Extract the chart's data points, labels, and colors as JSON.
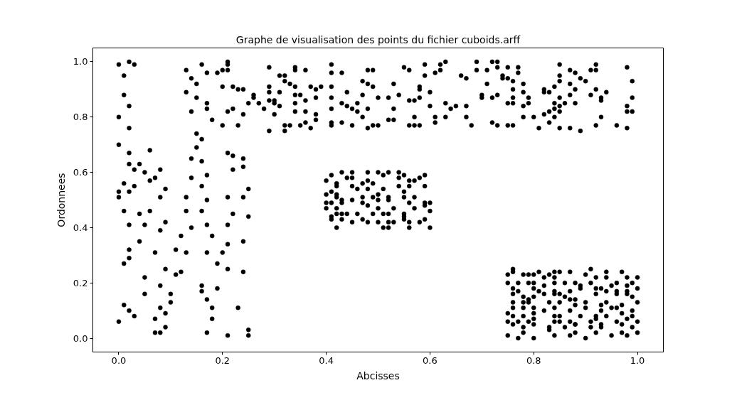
{
  "chart_data": {
    "type": "scatter",
    "title": "Graphe de visualisation des points du fichier cuboids.arff",
    "xlabel": "Abcisses",
    "ylabel": "Ordonnees",
    "marker": "circle",
    "xlim": [
      -0.05,
      1.05
    ],
    "ylim": [
      -0.05,
      1.05
    ],
    "xticks": [
      {
        "value": 0,
        "label": "0.0"
      },
      {
        "value": 0.2,
        "label": "0.2"
      },
      {
        "value": 0.4,
        "label": "0.4"
      },
      {
        "value": 0.6,
        "label": "0.6"
      },
      {
        "value": 0.8,
        "label": "0.8"
      },
      {
        "value": 1,
        "label": "1.0"
      }
    ],
    "yticks": [
      {
        "value": 0,
        "label": "0.0"
      },
      {
        "value": 0.2,
        "label": "0.2"
      },
      {
        "value": 0.4,
        "label": "0.4"
      },
      {
        "value": 0.6,
        "label": "0.6"
      },
      {
        "value": 0.8,
        "label": "0.8"
      },
      {
        "value": 1,
        "label": "1.0"
      }
    ],
    "series": [
      {
        "color": "#000000",
        "x": [
          0.0,
          0.01,
          0.02,
          0.03,
          0.01,
          0.02,
          0.0,
          0.02,
          0.0,
          0.02,
          0.02,
          0.03,
          0.01,
          0.0,
          0.02,
          0.0,
          0.03,
          0.01,
          0.02,
          0.02,
          0.01,
          0.02,
          0.01,
          0.0,
          0.02,
          0.03,
          0.05,
          0.05,
          0.04,
          0.04,
          0.05,
          0.06,
          0.04,
          0.05,
          0.06,
          0.07,
          0.06,
          0.08,
          0.08,
          0.09,
          0.09,
          0.08,
          0.07,
          0.09,
          0.08,
          0.08,
          0.09,
          0.07,
          0.08,
          0.09,
          0.1,
          0.1,
          0.11,
          0.11,
          0.12,
          0.13,
          0.12,
          0.13,
          0.14,
          0.13,
          0.14,
          0.14,
          0.15,
          0.15,
          0.14,
          0.14,
          0.13,
          0.15,
          0.13,
          0.15,
          0.17,
          0.16,
          0.17,
          0.17,
          0.18,
          0.16,
          0.16,
          0.17,
          0.16,
          0.17,
          0.16,
          0.17,
          0.18,
          0.17,
          0.16,
          0.16,
          0.17,
          0.18,
          0.18,
          0.17,
          0.19,
          0.19,
          0.2,
          0.21,
          0.21,
          0.21,
          0.21,
          0.22,
          0.22,
          0.21,
          0.22,
          0.2,
          0.21,
          0.21,
          0.2,
          0.19,
          0.2,
          0.22,
          0.22,
          0.23,
          0.24,
          0.24,
          0.24,
          0.25,
          0.25,
          0.24,
          0.24,
          0.23,
          0.25,
          0.25,
          0.24,
          0.25,
          0.24,
          0.23,
          0.21,
          0.21,
          0.07,
          0.21
        ],
        "values": [
          0.99,
          0.95,
          1.0,
          0.99,
          0.88,
          0.84,
          0.8,
          0.76,
          0.7,
          0.67,
          0.63,
          0.61,
          0.56,
          0.53,
          0.53,
          0.51,
          0.55,
          0.46,
          0.41,
          0.32,
          0.27,
          0.29,
          0.12,
          0.06,
          0.1,
          0.08,
          0.16,
          0.22,
          0.35,
          0.45,
          0.41,
          0.46,
          0.63,
          0.6,
          0.68,
          0.58,
          0.57,
          0.51,
          0.61,
          0.54,
          0.42,
          0.39,
          0.31,
          0.25,
          0.19,
          0.11,
          0.09,
          0.07,
          0.02,
          0.04,
          0.16,
          0.13,
          0.32,
          0.23,
          0.24,
          0.31,
          0.37,
          0.46,
          0.4,
          0.51,
          0.58,
          0.65,
          0.69,
          0.74,
          0.82,
          0.94,
          0.97,
          0.92,
          0.89,
          0.87,
          0.83,
          0.99,
          0.96,
          0.85,
          0.79,
          0.72,
          0.64,
          0.59,
          0.55,
          0.5,
          0.46,
          0.41,
          0.37,
          0.31,
          0.19,
          0.17,
          0.14,
          0.11,
          0.07,
          0.02,
          0.18,
          0.27,
          0.31,
          0.25,
          0.34,
          0.41,
          0.51,
          0.45,
          0.61,
          0.67,
          0.66,
          0.77,
          0.82,
          0.97,
          0.97,
          0.96,
          0.91,
          0.83,
          0.91,
          0.77,
          0.65,
          0.62,
          0.51,
          0.54,
          0.44,
          0.35,
          0.24,
          0.11,
          0.03,
          0.01,
          0.9,
          0.85,
          0.81,
          0.9,
          1.0,
          0.99,
          0.02,
          0.01
        ]
      },
      {
        "color": "#000000",
        "x": [
          0.29,
          0.34,
          0.34,
          0.36,
          0.41,
          0.41,
          0.43,
          0.48,
          0.49,
          0.55,
          0.56,
          0.59,
          0.62,
          0.63,
          0.62,
          0.61,
          0.59,
          0.66,
          0.67,
          0.69,
          0.69,
          0.31,
          0.32,
          0.32,
          0.33,
          0.29,
          0.34,
          0.37,
          0.38,
          0.39,
          0.41,
          0.47,
          0.48,
          0.49,
          0.53,
          0.58,
          0.58,
          0.6,
          0.26,
          0.26,
          0.27,
          0.29,
          0.29,
          0.3,
          0.31,
          0.34,
          0.35,
          0.36,
          0.38,
          0.41,
          0.44,
          0.47,
          0.5,
          0.52,
          0.54,
          0.56,
          0.57,
          0.58,
          0.63,
          0.7,
          0.7,
          0.28,
          0.3,
          0.31,
          0.34,
          0.34,
          0.36,
          0.38,
          0.38,
          0.36,
          0.41,
          0.43,
          0.44,
          0.45,
          0.46,
          0.46,
          0.48,
          0.47,
          0.53,
          0.53,
          0.52,
          0.57,
          0.6,
          0.61,
          0.61,
          0.63,
          0.64,
          0.65,
          0.67,
          0.67,
          0.3,
          0.35,
          0.32,
          0.33,
          0.29,
          0.32,
          0.37,
          0.41,
          0.41,
          0.43,
          0.45,
          0.48,
          0.49,
          0.5,
          0.56,
          0.57,
          0.58,
          0.68
        ],
        "values": [
          0.98,
          0.98,
          0.97,
          0.97,
          0.99,
          0.96,
          0.96,
          0.97,
          0.97,
          0.98,
          0.97,
          0.99,
          0.99,
          1.0,
          0.97,
          0.96,
          0.95,
          0.95,
          0.94,
          0.97,
          1.0,
          0.95,
          0.95,
          0.93,
          0.92,
          0.91,
          0.91,
          0.91,
          0.9,
          0.91,
          0.91,
          0.93,
          0.92,
          0.91,
          0.92,
          0.91,
          0.9,
          0.89,
          0.88,
          0.87,
          0.85,
          0.89,
          0.86,
          0.86,
          0.89,
          0.88,
          0.88,
          0.86,
          0.87,
          0.87,
          0.89,
          0.88,
          0.87,
          0.87,
          0.88,
          0.86,
          0.86,
          0.87,
          0.85,
          0.88,
          0.87,
          0.83,
          0.85,
          0.84,
          0.85,
          0.82,
          0.82,
          0.81,
          0.79,
          0.78,
          0.83,
          0.85,
          0.84,
          0.83,
          0.85,
          0.82,
          0.83,
          0.8,
          0.83,
          0.79,
          0.79,
          0.8,
          0.84,
          0.8,
          0.78,
          0.8,
          0.83,
          0.84,
          0.84,
          0.8,
          0.81,
          0.77,
          0.77,
          0.77,
          0.75,
          0.75,
          0.76,
          0.77,
          0.78,
          0.78,
          0.77,
          0.76,
          0.77,
          0.77,
          0.77,
          0.77,
          0.77,
          0.77
        ]
      },
      {
        "color": "#000000",
        "x": [
          0.72,
          0.73,
          0.73,
          0.75,
          0.77,
          0.77,
          0.71,
          0.74,
          0.74,
          0.75,
          0.76,
          0.78,
          0.71,
          0.76,
          0.78,
          0.72,
          0.73,
          0.75,
          0.76,
          0.76,
          0.78,
          0.79,
          0.79,
          0.78,
          0.72,
          0.73,
          0.75,
          0.76,
          0.85,
          0.85,
          0.85,
          0.84,
          0.87,
          0.88,
          0.87,
          0.88,
          0.89,
          0.9,
          0.82,
          0.82,
          0.83,
          0.85,
          0.87,
          0.86,
          0.88,
          0.84,
          0.85,
          0.84,
          0.85,
          0.83,
          0.82,
          0.8,
          0.84,
          0.83,
          0.81,
          0.85,
          0.87,
          0.89,
          0.91,
          0.92,
          0.92,
          0.91,
          0.92,
          0.94,
          0.93,
          0.93,
          0.93,
          0.92,
          0.98,
          0.99,
          0.99,
          0.98,
          0.98,
          0.99,
          0.96,
          0.98
        ],
        "values": [
          1.0,
          1.0,
          0.98,
          0.98,
          0.98,
          0.96,
          0.97,
          0.95,
          0.94,
          0.94,
          0.93,
          0.92,
          0.92,
          0.9,
          0.89,
          0.87,
          0.88,
          0.85,
          0.85,
          0.87,
          0.84,
          0.85,
          0.87,
          0.8,
          0.78,
          0.77,
          0.77,
          0.77,
          0.99,
          0.95,
          0.93,
          0.91,
          0.97,
          0.96,
          0.92,
          0.9,
          0.94,
          0.93,
          0.9,
          0.89,
          0.89,
          0.87,
          0.88,
          0.85,
          0.85,
          0.85,
          0.84,
          0.83,
          0.82,
          0.82,
          0.81,
          0.8,
          0.8,
          0.78,
          0.76,
          0.76,
          0.76,
          0.75,
          0.97,
          0.99,
          0.97,
          0.88,
          0.9,
          0.89,
          0.87,
          0.86,
          0.8,
          0.77,
          0.98,
          0.93,
          0.87,
          0.84,
          0.82,
          0.82,
          0.77,
          0.76
        ]
      },
      {
        "color": "#000000",
        "x": [
          0.43,
          0.45,
          0.48,
          0.5,
          0.52,
          0.54,
          0.55,
          0.59,
          0.41,
          0.45,
          0.44,
          0.51,
          0.4,
          0.42,
          0.42,
          0.45,
          0.47,
          0.48,
          0.49,
          0.54,
          0.56,
          0.57,
          0.58,
          0.59,
          0.46,
          0.48,
          0.51,
          0.54,
          0.55,
          0.56,
          0.41,
          0.4,
          0.42,
          0.42,
          0.43,
          0.45,
          0.47,
          0.49,
          0.5,
          0.5,
          0.52,
          0.52,
          0.55,
          0.57,
          0.56,
          0.59,
          0.6,
          0.4,
          0.41,
          0.43,
          0.47,
          0.4,
          0.42,
          0.48,
          0.5,
          0.53,
          0.57,
          0.59,
          0.6,
          0.42,
          0.44,
          0.55,
          0.41,
          0.43,
          0.46,
          0.49,
          0.51,
          0.52,
          0.55,
          0.41,
          0.43,
          0.45,
          0.48,
          0.5,
          0.52,
          0.53,
          0.55,
          0.56,
          0.58,
          0.59,
          0.42,
          0.51,
          0.52,
          0.56,
          0.6,
          0.47
        ],
        "values": [
          0.6,
          0.6,
          0.6,
          0.6,
          0.6,
          0.6,
          0.59,
          0.59,
          0.59,
          0.58,
          0.58,
          0.59,
          0.57,
          0.56,
          0.55,
          0.55,
          0.56,
          0.57,
          0.56,
          0.58,
          0.57,
          0.57,
          0.58,
          0.55,
          0.54,
          0.54,
          0.54,
          0.55,
          0.53,
          0.55,
          0.53,
          0.52,
          0.52,
          0.51,
          0.5,
          0.5,
          0.51,
          0.51,
          0.5,
          0.52,
          0.51,
          0.5,
          0.51,
          0.51,
          0.49,
          0.49,
          0.49,
          0.49,
          0.49,
          0.49,
          0.49,
          0.47,
          0.47,
          0.48,
          0.47,
          0.47,
          0.47,
          0.48,
          0.46,
          0.45,
          0.45,
          0.45,
          0.44,
          0.45,
          0.45,
          0.45,
          0.45,
          0.45,
          0.44,
          0.43,
          0.43,
          0.42,
          0.42,
          0.42,
          0.42,
          0.42,
          0.43,
          0.42,
          0.42,
          0.43,
          0.4,
          0.4,
          0.4,
          0.4,
          0.4,
          0.43
        ]
      },
      {
        "color": "#000000",
        "x": [
          0.76,
          0.75,
          0.76,
          0.78,
          0.79,
          0.8,
          0.81,
          0.83,
          0.84,
          0.85,
          0.87,
          0.9,
          0.91,
          0.94,
          0.97,
          0.98,
          1.0,
          0.92,
          0.94,
          0.84,
          0.82,
          0.75,
          0.77,
          0.79,
          0.8,
          0.82,
          0.84,
          0.86,
          0.88,
          0.89,
          0.91,
          0.92,
          0.93,
          0.95,
          0.96,
          0.98,
          0.99,
          0.76,
          0.77,
          0.8,
          0.81,
          0.84,
          0.85,
          0.87,
          0.89,
          0.94,
          0.96,
          0.98,
          1.0,
          0.76,
          0.78,
          0.79,
          0.8,
          0.82,
          0.84,
          0.86,
          0.87,
          0.88,
          0.92,
          0.96,
          0.98,
          0.99,
          0.76,
          0.78,
          0.79,
          0.83,
          0.85,
          0.88,
          0.9,
          0.93,
          0.94,
          0.95,
          0.97,
          1.0,
          0.76,
          0.78,
          0.8,
          0.82,
          0.84,
          0.87,
          0.9,
          0.93,
          0.96,
          0.99,
          0.75,
          0.76,
          0.78,
          0.8,
          0.84,
          0.85,
          0.89,
          0.92,
          0.94,
          0.97,
          0.99,
          0.75,
          0.77,
          0.79,
          0.8,
          0.84,
          0.85,
          0.87,
          0.88,
          0.91,
          0.92,
          0.93,
          0.96,
          0.98,
          1.0,
          0.76,
          0.78,
          0.8,
          0.83,
          0.86,
          0.88,
          0.91,
          0.93,
          0.97,
          0.99,
          0.75,
          0.77,
          0.78,
          0.8,
          0.83,
          0.84,
          0.87,
          0.88,
          0.9,
          0.92,
          0.95,
          0.97,
          0.98,
          1.0
        ],
        "values": [
          0.25,
          0.23,
          0.24,
          0.23,
          0.23,
          0.23,
          0.24,
          0.23,
          0.24,
          0.24,
          0.24,
          0.23,
          0.25,
          0.24,
          0.24,
          0.22,
          0.22,
          0.22,
          0.22,
          0.22,
          0.22,
          0.2,
          0.2,
          0.2,
          0.2,
          0.19,
          0.2,
          0.2,
          0.2,
          0.19,
          0.2,
          0.18,
          0.18,
          0.19,
          0.2,
          0.19,
          0.2,
          0.18,
          0.17,
          0.18,
          0.17,
          0.17,
          0.16,
          0.17,
          0.18,
          0.17,
          0.17,
          0.17,
          0.18,
          0.16,
          0.15,
          0.14,
          0.15,
          0.16,
          0.16,
          0.15,
          0.14,
          0.14,
          0.16,
          0.16,
          0.16,
          0.15,
          0.13,
          0.13,
          0.13,
          0.13,
          0.13,
          0.12,
          0.13,
          0.12,
          0.13,
          0.11,
          0.12,
          0.13,
          0.11,
          0.11,
          0.11,
          0.1,
          0.11,
          0.1,
          0.11,
          0.1,
          0.11,
          0.1,
          0.09,
          0.08,
          0.08,
          0.09,
          0.08,
          0.08,
          0.08,
          0.08,
          0.08,
          0.09,
          0.08,
          0.06,
          0.06,
          0.06,
          0.07,
          0.06,
          0.06,
          0.06,
          0.05,
          0.06,
          0.07,
          0.05,
          0.06,
          0.07,
          0.06,
          0.05,
          0.04,
          0.05,
          0.04,
          0.04,
          0.05,
          0.04,
          0.04,
          0.05,
          0.04,
          0.01,
          0.0,
          0.02,
          0.0,
          0.03,
          0.01,
          0.01,
          0.02,
          0.0,
          0.02,
          0.01,
          0.02,
          0.01,
          0.02
        ]
      }
    ]
  }
}
